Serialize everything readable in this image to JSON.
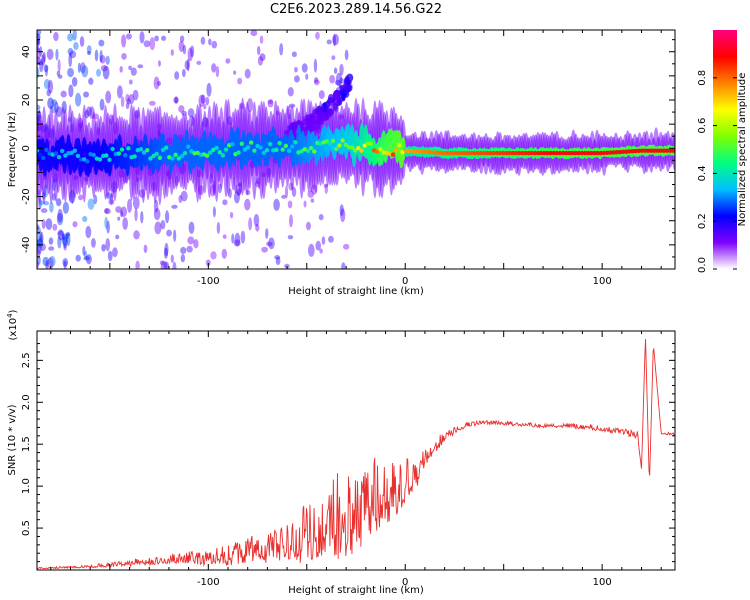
{
  "title": "C2E6.2023.289.14.56.G22",
  "chart_data": [
    {
      "type": "heatmap",
      "xlabel": "Height of straight line (km)",
      "ylabel": "Frequency (Hz)",
      "xlim": [
        -187,
        137
      ],
      "ylim": [
        -50,
        49
      ],
      "x_ticks": [
        -100,
        0,
        100
      ],
      "x_tick_labels": [
        "-100",
        "0",
        "100"
      ],
      "y_ticks": [
        -40,
        -20,
        0,
        20,
        40
      ],
      "y_tick_labels": [
        "-40",
        "-20",
        "0",
        "20",
        "40"
      ],
      "colorbar": {
        "label": "Normalized spectral amplitude",
        "range": [
          0,
          1
        ],
        "ticks": [
          0.0,
          0.2,
          0.4,
          0.6,
          0.8
        ],
        "tick_labels": [
          "0.0",
          "0.2",
          "0.4",
          "0.6",
          "0.8"
        ],
        "colormap": [
          "#ffffff",
          "#7f00ff",
          "#0000ff",
          "#00c0ff",
          "#00ff80",
          "#80ff00",
          "#ffff00",
          "#ff8000",
          "#ff0000",
          "#ff0080"
        ]
      },
      "ridge": {
        "x": [
          -185,
          -160,
          -140,
          -120,
          -100,
          -80,
          -60,
          -45,
          -30,
          -20,
          -10,
          0,
          20,
          50,
          80,
          100,
          120,
          135
        ],
        "freq": [
          -3,
          -3,
          -2,
          -2,
          -1,
          0,
          0,
          1,
          2,
          1,
          0,
          -1,
          -2,
          -2,
          -2,
          -2,
          -1,
          -1
        ],
        "amplitude": [
          0.3,
          0.3,
          0.35,
          0.4,
          0.4,
          0.4,
          0.4,
          0.45,
          0.5,
          0.6,
          0.7,
          0.75,
          0.8,
          0.85,
          0.9,
          0.9,
          0.9,
          0.9
        ]
      },
      "rising_arm": {
        "x": [
          -60,
          -45,
          -35,
          -28
        ],
        "freq": [
          5,
          12,
          20,
          28
        ]
      }
    },
    {
      "type": "line",
      "xlabel": "Height of straight line (km)",
      "ylabel": "SNR (10 * v/v)",
      "y_multiplier_label": "(x10",
      "y_multiplier_exp": "4",
      "xlim": [
        -187,
        137
      ],
      "ylim": [
        0,
        2.85
      ],
      "x_ticks": [
        -100,
        0,
        100
      ],
      "x_tick_labels": [
        "-100",
        "0",
        "100"
      ],
      "y_ticks": [
        0.5,
        1.0,
        1.5,
        2.0,
        2.5
      ],
      "y_tick_labels": [
        "0.5",
        "1.0",
        "1.5",
        "2.0",
        "2.5"
      ],
      "line_color": "#e8312f",
      "series": [
        {
          "x": [
            -187,
            -160,
            -140,
            -120,
            -100,
            -80,
            -70,
            -60,
            -50,
            -40,
            -30,
            -20,
            -10,
            0,
            10,
            20,
            30,
            40,
            50,
            60,
            70,
            80,
            90,
            100,
            110,
            118,
            120,
            122,
            124,
            126,
            130,
            137
          ],
          "values": [
            0.02,
            0.04,
            0.08,
            0.12,
            0.15,
            0.2,
            0.25,
            0.3,
            0.4,
            0.5,
            0.6,
            0.75,
            0.85,
            1.0,
            1.3,
            1.6,
            1.72,
            1.76,
            1.75,
            1.73,
            1.72,
            1.72,
            1.71,
            1.68,
            1.65,
            1.6,
            1.2,
            2.8,
            1.0,
            2.7,
            1.63,
            1.62
          ],
          "noise_amp": [
            0.01,
            0.02,
            0.05,
            0.08,
            0.12,
            0.2,
            0.22,
            0.3,
            0.45,
            0.55,
            0.65,
            0.6,
            0.5,
            0.35,
            0.15,
            0.08,
            0.04,
            0.03,
            0.03,
            0.03,
            0.03,
            0.03,
            0.04,
            0.04,
            0.05,
            0.06,
            0.0,
            0.0,
            0.0,
            0.0,
            0.02,
            0.02
          ]
        }
      ]
    }
  ]
}
